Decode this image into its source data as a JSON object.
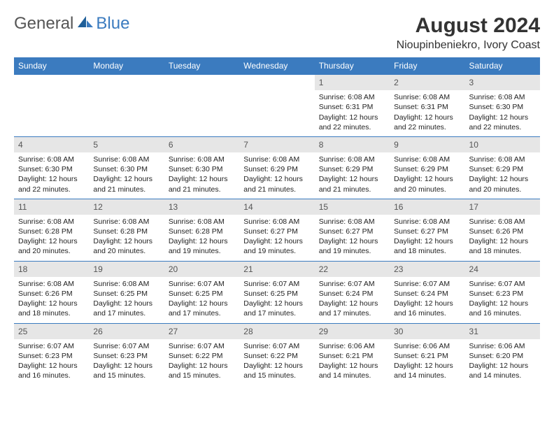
{
  "brand": {
    "general": "General",
    "blue": "Blue"
  },
  "header": {
    "title": "August 2024",
    "location": "Nioupinbeniekro, Ivory Coast"
  },
  "dayHeaders": [
    "Sunday",
    "Monday",
    "Tuesday",
    "Wednesday",
    "Thursday",
    "Friday",
    "Saturday"
  ],
  "colors": {
    "header_bg": "#3b7bbf",
    "header_text": "#ffffff",
    "daynum_bg": "#e6e6e6",
    "daynum_text": "#555555",
    "body_text": "#222222",
    "brand_gray": "#555555",
    "brand_blue": "#3b7bbf"
  },
  "weeks": [
    [
      null,
      null,
      null,
      null,
      {
        "n": "1",
        "sr": "Sunrise: 6:08 AM",
        "ss": "Sunset: 6:31 PM",
        "dl": "Daylight: 12 hours and 22 minutes."
      },
      {
        "n": "2",
        "sr": "Sunrise: 6:08 AM",
        "ss": "Sunset: 6:31 PM",
        "dl": "Daylight: 12 hours and 22 minutes."
      },
      {
        "n": "3",
        "sr": "Sunrise: 6:08 AM",
        "ss": "Sunset: 6:30 PM",
        "dl": "Daylight: 12 hours and 22 minutes."
      }
    ],
    [
      {
        "n": "4",
        "sr": "Sunrise: 6:08 AM",
        "ss": "Sunset: 6:30 PM",
        "dl": "Daylight: 12 hours and 22 minutes."
      },
      {
        "n": "5",
        "sr": "Sunrise: 6:08 AM",
        "ss": "Sunset: 6:30 PM",
        "dl": "Daylight: 12 hours and 21 minutes."
      },
      {
        "n": "6",
        "sr": "Sunrise: 6:08 AM",
        "ss": "Sunset: 6:30 PM",
        "dl": "Daylight: 12 hours and 21 minutes."
      },
      {
        "n": "7",
        "sr": "Sunrise: 6:08 AM",
        "ss": "Sunset: 6:29 PM",
        "dl": "Daylight: 12 hours and 21 minutes."
      },
      {
        "n": "8",
        "sr": "Sunrise: 6:08 AM",
        "ss": "Sunset: 6:29 PM",
        "dl": "Daylight: 12 hours and 21 minutes."
      },
      {
        "n": "9",
        "sr": "Sunrise: 6:08 AM",
        "ss": "Sunset: 6:29 PM",
        "dl": "Daylight: 12 hours and 20 minutes."
      },
      {
        "n": "10",
        "sr": "Sunrise: 6:08 AM",
        "ss": "Sunset: 6:29 PM",
        "dl": "Daylight: 12 hours and 20 minutes."
      }
    ],
    [
      {
        "n": "11",
        "sr": "Sunrise: 6:08 AM",
        "ss": "Sunset: 6:28 PM",
        "dl": "Daylight: 12 hours and 20 minutes."
      },
      {
        "n": "12",
        "sr": "Sunrise: 6:08 AM",
        "ss": "Sunset: 6:28 PM",
        "dl": "Daylight: 12 hours and 20 minutes."
      },
      {
        "n": "13",
        "sr": "Sunrise: 6:08 AM",
        "ss": "Sunset: 6:28 PM",
        "dl": "Daylight: 12 hours and 19 minutes."
      },
      {
        "n": "14",
        "sr": "Sunrise: 6:08 AM",
        "ss": "Sunset: 6:27 PM",
        "dl": "Daylight: 12 hours and 19 minutes."
      },
      {
        "n": "15",
        "sr": "Sunrise: 6:08 AM",
        "ss": "Sunset: 6:27 PM",
        "dl": "Daylight: 12 hours and 19 minutes."
      },
      {
        "n": "16",
        "sr": "Sunrise: 6:08 AM",
        "ss": "Sunset: 6:27 PM",
        "dl": "Daylight: 12 hours and 18 minutes."
      },
      {
        "n": "17",
        "sr": "Sunrise: 6:08 AM",
        "ss": "Sunset: 6:26 PM",
        "dl": "Daylight: 12 hours and 18 minutes."
      }
    ],
    [
      {
        "n": "18",
        "sr": "Sunrise: 6:08 AM",
        "ss": "Sunset: 6:26 PM",
        "dl": "Daylight: 12 hours and 18 minutes."
      },
      {
        "n": "19",
        "sr": "Sunrise: 6:08 AM",
        "ss": "Sunset: 6:25 PM",
        "dl": "Daylight: 12 hours and 17 minutes."
      },
      {
        "n": "20",
        "sr": "Sunrise: 6:07 AM",
        "ss": "Sunset: 6:25 PM",
        "dl": "Daylight: 12 hours and 17 minutes."
      },
      {
        "n": "21",
        "sr": "Sunrise: 6:07 AM",
        "ss": "Sunset: 6:25 PM",
        "dl": "Daylight: 12 hours and 17 minutes."
      },
      {
        "n": "22",
        "sr": "Sunrise: 6:07 AM",
        "ss": "Sunset: 6:24 PM",
        "dl": "Daylight: 12 hours and 17 minutes."
      },
      {
        "n": "23",
        "sr": "Sunrise: 6:07 AM",
        "ss": "Sunset: 6:24 PM",
        "dl": "Daylight: 12 hours and 16 minutes."
      },
      {
        "n": "24",
        "sr": "Sunrise: 6:07 AM",
        "ss": "Sunset: 6:23 PM",
        "dl": "Daylight: 12 hours and 16 minutes."
      }
    ],
    [
      {
        "n": "25",
        "sr": "Sunrise: 6:07 AM",
        "ss": "Sunset: 6:23 PM",
        "dl": "Daylight: 12 hours and 16 minutes."
      },
      {
        "n": "26",
        "sr": "Sunrise: 6:07 AM",
        "ss": "Sunset: 6:23 PM",
        "dl": "Daylight: 12 hours and 15 minutes."
      },
      {
        "n": "27",
        "sr": "Sunrise: 6:07 AM",
        "ss": "Sunset: 6:22 PM",
        "dl": "Daylight: 12 hours and 15 minutes."
      },
      {
        "n": "28",
        "sr": "Sunrise: 6:07 AM",
        "ss": "Sunset: 6:22 PM",
        "dl": "Daylight: 12 hours and 15 minutes."
      },
      {
        "n": "29",
        "sr": "Sunrise: 6:06 AM",
        "ss": "Sunset: 6:21 PM",
        "dl": "Daylight: 12 hours and 14 minutes."
      },
      {
        "n": "30",
        "sr": "Sunrise: 6:06 AM",
        "ss": "Sunset: 6:21 PM",
        "dl": "Daylight: 12 hours and 14 minutes."
      },
      {
        "n": "31",
        "sr": "Sunrise: 6:06 AM",
        "ss": "Sunset: 6:20 PM",
        "dl": "Daylight: 12 hours and 14 minutes."
      }
    ]
  ]
}
